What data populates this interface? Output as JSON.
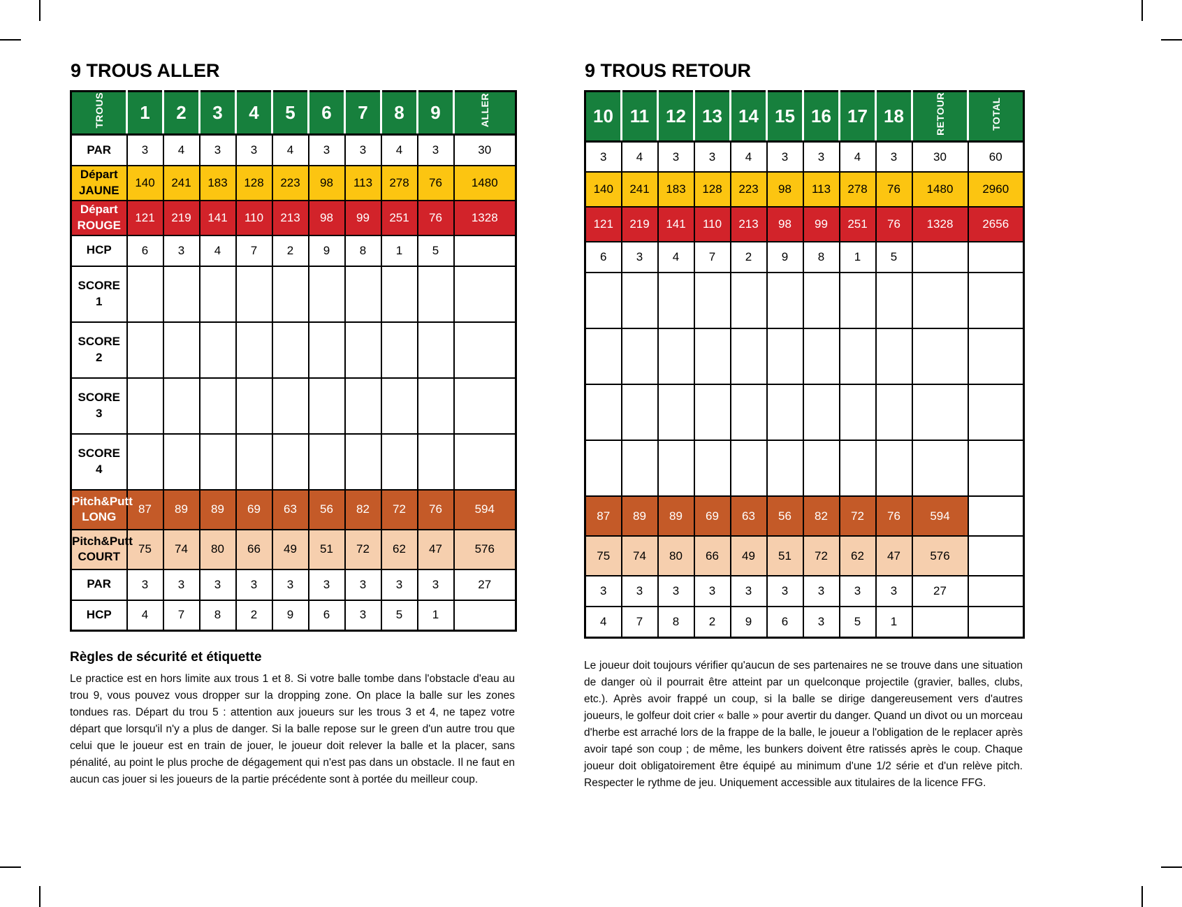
{
  "colors": {
    "green": "#17803d",
    "yellow": "#fcc511",
    "red": "#d2232a",
    "orange": "#c45a28",
    "peach": "#f6cfae"
  },
  "aller": {
    "title": "9 TROUS ALLER",
    "corner": "TROUS",
    "holes": [
      "1",
      "2",
      "3",
      "4",
      "5",
      "6",
      "7",
      "8",
      "9"
    ],
    "sum_label": "ALLER",
    "rows": [
      {
        "label": "PAR",
        "kind": "plain",
        "values": [
          "3",
          "4",
          "3",
          "3",
          "4",
          "3",
          "3",
          "4",
          "3"
        ],
        "sum": "30"
      },
      {
        "label": "Départ\nJAUNE",
        "kind": "yellow",
        "values": [
          "140",
          "241",
          "183",
          "128",
          "223",
          "98",
          "113",
          "278",
          "76"
        ],
        "sum": "1480"
      },
      {
        "label": "Départ\nROUGE",
        "kind": "red",
        "values": [
          "121",
          "219",
          "141",
          "110",
          "213",
          "98",
          "99",
          "251",
          "76"
        ],
        "sum": "1328"
      },
      {
        "label": "HCP",
        "kind": "plain",
        "values": [
          "6",
          "3",
          "4",
          "7",
          "2",
          "9",
          "8",
          "1",
          "5"
        ],
        "sum": ""
      },
      {
        "label": "SCORE\n1",
        "kind": "score",
        "values": [
          "",
          "",
          "",
          "",
          "",
          "",
          "",
          "",
          ""
        ],
        "sum": ""
      },
      {
        "label": "SCORE\n2",
        "kind": "score",
        "values": [
          "",
          "",
          "",
          "",
          "",
          "",
          "",
          "",
          ""
        ],
        "sum": ""
      },
      {
        "label": "SCORE\n3",
        "kind": "score",
        "values": [
          "",
          "",
          "",
          "",
          "",
          "",
          "",
          "",
          ""
        ],
        "sum": ""
      },
      {
        "label": "SCORE\n4",
        "kind": "score",
        "values": [
          "",
          "",
          "",
          "",
          "",
          "",
          "",
          "",
          ""
        ],
        "sum": ""
      },
      {
        "label": "Pitch&Putt\nLONG",
        "kind": "orange",
        "values": [
          "87",
          "89",
          "89",
          "69",
          "63",
          "56",
          "82",
          "72",
          "76"
        ],
        "sum": "594"
      },
      {
        "label": "Pitch&Putt\nCOURT",
        "kind": "peach",
        "values": [
          "75",
          "74",
          "80",
          "66",
          "49",
          "51",
          "72",
          "62",
          "47"
        ],
        "sum": "576"
      },
      {
        "label": "PAR",
        "kind": "plain",
        "values": [
          "3",
          "3",
          "3",
          "3",
          "3",
          "3",
          "3",
          "3",
          "3"
        ],
        "sum": "27"
      },
      {
        "label": "HCP",
        "kind": "plain",
        "values": [
          "4",
          "7",
          "8",
          "2",
          "9",
          "6",
          "3",
          "5",
          "1"
        ],
        "sum": ""
      }
    ],
    "rules_heading": "Règles de sécurité et étiquette",
    "rules_text": "Le practice est en hors limite aux trous 1 et 8. Si votre balle tombe dans l'obstacle d'eau au trou 9, vous pouvez vous dropper sur la dropping zone. On place la balle sur les zones tondues ras. Départ du trou 5 : attention aux joueurs sur les trous 3 et 4, ne tapez votre départ que lorsqu'il n'y a plus de danger. Si la balle repose sur le green d'un autre trou que celui que le joueur est en train de jouer, le joueur doit relever la balle et la placer, sans pénalité, au point le plus proche de dégagement qui n'est pas dans un obstacle. Il ne faut en aucun cas jouer si les joueurs de la partie précédente sont à portée du meilleur coup."
  },
  "retour": {
    "title": "9 TROUS RETOUR",
    "holes": [
      "10",
      "11",
      "12",
      "13",
      "14",
      "15",
      "16",
      "17",
      "18"
    ],
    "sum_label": "RETOUR",
    "total_label": "TOTAL",
    "rows": [
      {
        "kind": "plain",
        "values": [
          "3",
          "4",
          "3",
          "3",
          "4",
          "3",
          "3",
          "4",
          "3"
        ],
        "sum": "30",
        "total": "60"
      },
      {
        "kind": "yellow",
        "values": [
          "140",
          "241",
          "183",
          "128",
          "223",
          "98",
          "113",
          "278",
          "76"
        ],
        "sum": "1480",
        "total": "2960"
      },
      {
        "kind": "red",
        "values": [
          "121",
          "219",
          "141",
          "110",
          "213",
          "98",
          "99",
          "251",
          "76"
        ],
        "sum": "1328",
        "total": "2656"
      },
      {
        "kind": "plain",
        "values": [
          "6",
          "3",
          "4",
          "7",
          "2",
          "9",
          "8",
          "1",
          "5"
        ],
        "sum": "",
        "total": ""
      },
      {
        "kind": "score",
        "values": [
          "",
          "",
          "",
          "",
          "",
          "",
          "",
          "",
          ""
        ],
        "sum": "",
        "total": ""
      },
      {
        "kind": "score",
        "values": [
          "",
          "",
          "",
          "",
          "",
          "",
          "",
          "",
          ""
        ],
        "sum": "",
        "total": ""
      },
      {
        "kind": "score",
        "values": [
          "",
          "",
          "",
          "",
          "",
          "",
          "",
          "",
          ""
        ],
        "sum": "",
        "total": ""
      },
      {
        "kind": "score",
        "values": [
          "",
          "",
          "",
          "",
          "",
          "",
          "",
          "",
          ""
        ],
        "sum": "",
        "total": ""
      },
      {
        "kind": "orange",
        "values": [
          "87",
          "89",
          "89",
          "69",
          "63",
          "56",
          "82",
          "72",
          "76"
        ],
        "sum": "594",
        "total": ""
      },
      {
        "kind": "peach",
        "values": [
          "75",
          "74",
          "80",
          "66",
          "49",
          "51",
          "72",
          "62",
          "47"
        ],
        "sum": "576",
        "total": ""
      },
      {
        "kind": "plain",
        "values": [
          "3",
          "3",
          "3",
          "3",
          "3",
          "3",
          "3",
          "3",
          "3"
        ],
        "sum": "27",
        "total": ""
      },
      {
        "kind": "plain",
        "values": [
          "4",
          "7",
          "8",
          "2",
          "9",
          "6",
          "3",
          "5",
          "1"
        ],
        "sum": "",
        "total": ""
      }
    ],
    "body_text": "Le joueur doit toujours vérifier qu'aucun de ses partenaires ne se trouve dans une situation de danger où il pourrait être atteint par un quelconque projectile (gravier, balles, clubs, etc.). Après avoir frappé un coup, si la balle se dirige dangereusement vers d'autres joueurs, le golfeur doit crier « balle » pour avertir du danger. Quand un divot ou un morceau d'herbe est arraché lors de la frappe de la balle, le joueur a l'obligation de le replacer après avoir tapé son coup ; de même, les bunkers doivent être ratissés après le coup. Chaque joueur doit obligatoirement être équipé au minimum d'une 1/2 série et d'un relève pitch. Respecter le rythme de jeu. Uniquement accessible aux titulaires de la licence FFG."
  }
}
